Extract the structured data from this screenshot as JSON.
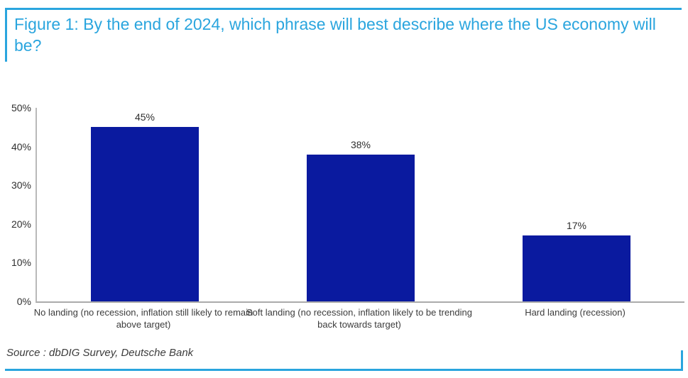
{
  "figure": {
    "title": "Figure 1: By the end of 2024, which phrase will best describe where the US economy will be?",
    "source": "Source : dbDIG Survey, Deutsche Bank"
  },
  "colors": {
    "accent_blue": "#2aa5de",
    "bar_blue": "#0a1a9f",
    "axis_gray": "#b0b0b0",
    "text_gray": "#3c3c3c"
  },
  "chart_data": {
    "type": "bar",
    "title": "Figure 1: By the end of 2024, which phrase will best describe where the US economy will be?",
    "categories": [
      "No landing (no recession, inflation still likely to remain above target)",
      "Soft landing (no recession, inflation likely to be trending back towards target)",
      "Hard landing (recession)"
    ],
    "values": [
      45,
      38,
      17
    ],
    "value_labels": [
      "45%",
      "38%",
      "17%"
    ],
    "xlabel": "",
    "ylabel": "",
    "ylim": [
      0,
      50
    ],
    "yticks": [
      0,
      10,
      20,
      30,
      40,
      50
    ],
    "ytick_labels": [
      "0%",
      "10%",
      "20%",
      "30%",
      "40%",
      "50%"
    ],
    "grid": false,
    "legend": false
  }
}
